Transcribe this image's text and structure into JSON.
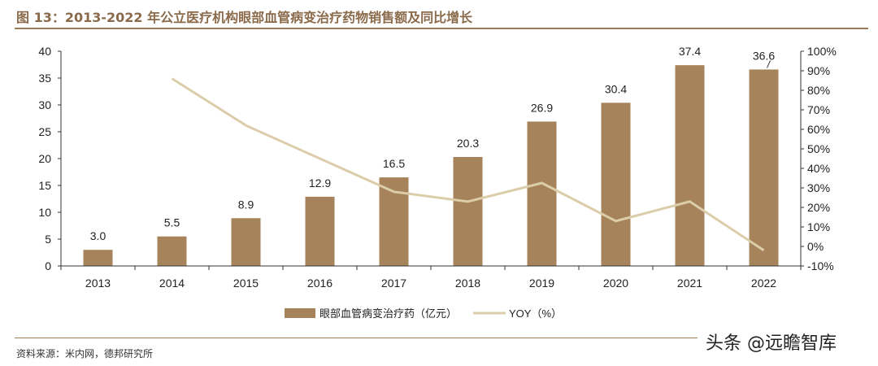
{
  "title": "图 13：2013-2022 年公立医疗机构眼部血管病变治疗药物销售额及同比增长",
  "source": "资料来源：米内网，德邦研究所",
  "watermark": "头条 @远瞻智库",
  "colors": {
    "bar": "#A6835A",
    "line": "#DCCDAA",
    "title": "#8a6a4a"
  },
  "chart_data": {
    "type": "bar+line",
    "categories": [
      "2013",
      "2014",
      "2015",
      "2016",
      "2017",
      "2018",
      "2019",
      "2020",
      "2021",
      "2022"
    ],
    "series": [
      {
        "name": "眼部血管病变治疗药（亿元）",
        "type": "bar",
        "axis": "left",
        "values": [
          3.0,
          5.5,
          8.9,
          12.9,
          16.5,
          20.3,
          26.9,
          30.4,
          37.4,
          36.6
        ],
        "labels": [
          "3.0",
          "5.5",
          "8.9",
          "12.9",
          "16.5",
          "20.3",
          "26.9",
          "30.4",
          "37.4",
          "36.6"
        ]
      },
      {
        "name": "YOY（%）",
        "type": "line",
        "axis": "right",
        "values": [
          null,
          86,
          62,
          45,
          28,
          23,
          32.5,
          13,
          23,
          -2
        ]
      }
    ],
    "left_axis": {
      "min": 0,
      "max": 40,
      "ticks": [
        "0",
        "5",
        "10",
        "15",
        "20",
        "25",
        "30",
        "35",
        "40"
      ]
    },
    "right_axis": {
      "min": -10,
      "max": 100,
      "ticks": [
        "-10%",
        "0%",
        "10%",
        "20%",
        "30%",
        "40%",
        "50%",
        "60%",
        "70%",
        "80%",
        "90%",
        "100%"
      ]
    },
    "legend": "bottom",
    "grid": false
  }
}
